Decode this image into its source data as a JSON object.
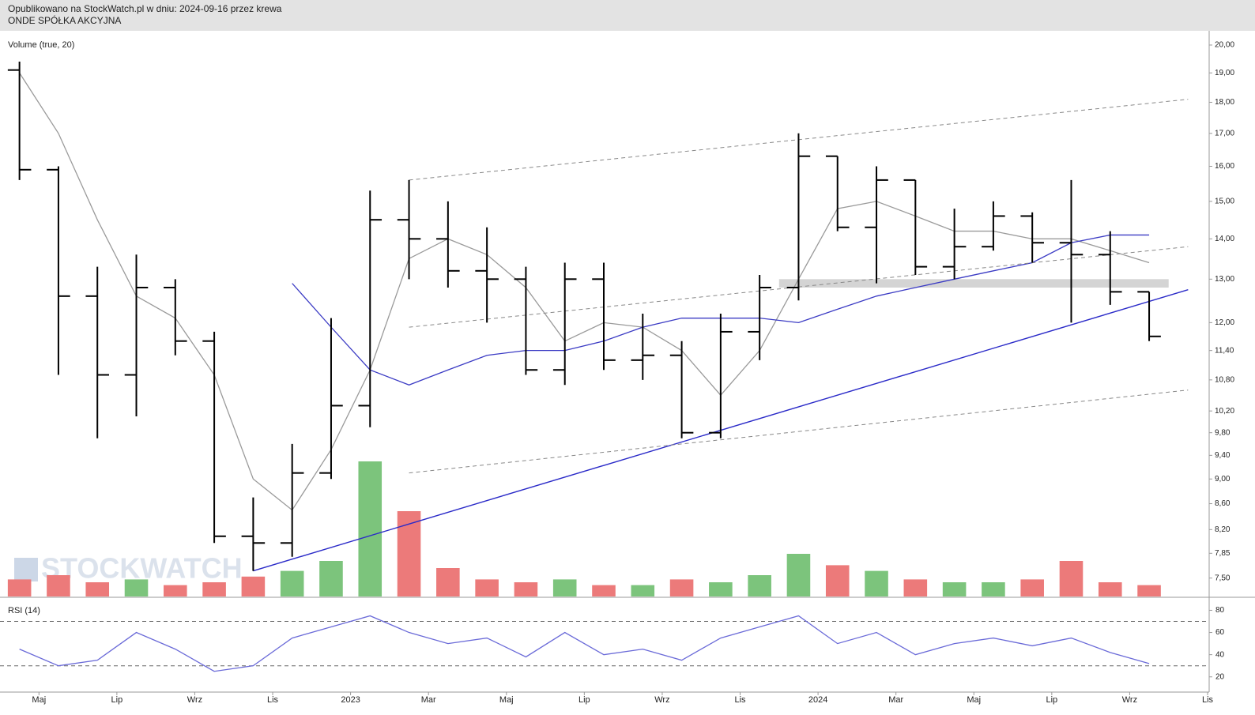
{
  "chart_data": [
    {
      "type": "ohlc",
      "title": "Opublikowano na StockWatch.pl w dniu: 2024-09-16 przez krewa",
      "subtitle": "ONDE SPÓŁKA AKCYJNA",
      "watermark": "STOCKWATCH",
      "log_scale": true,
      "color": "#000000",
      "x": [
        "2022-04",
        "2022-05",
        "2022-06",
        "2022-07",
        "2022-08",
        "2022-09",
        "2022-10",
        "2022-11",
        "2022-12",
        "2023-01",
        "2023-02",
        "2023-03",
        "2023-04",
        "2023-05",
        "2023-06",
        "2023-07",
        "2023-08",
        "2023-09",
        "2023-10",
        "2023-11",
        "2023-12",
        "2024-01",
        "2024-02",
        "2024-03",
        "2024-04",
        "2024-05",
        "2024-06",
        "2024-07",
        "2024-08",
        "2024-09"
      ],
      "open": [
        19.1,
        15.9,
        12.6,
        10.9,
        12.8,
        11.6,
        8.1,
        8.0,
        9.1,
        10.3,
        14.5,
        14.0,
        13.2,
        13.0,
        11.0,
        13.0,
        11.2,
        11.3,
        9.8,
        11.8,
        12.8,
        16.3,
        14.3,
        15.6,
        13.3,
        13.8,
        14.6,
        13.9,
        13.6,
        12.7
      ],
      "high": [
        19.4,
        16.0,
        13.3,
        13.6,
        13.0,
        11.8,
        8.7,
        9.6,
        12.1,
        15.3,
        15.6,
        15.0,
        14.3,
        13.3,
        13.4,
        13.4,
        12.2,
        11.6,
        12.2,
        13.1,
        17.0,
        16.3,
        16.0,
        15.6,
        14.8,
        15.0,
        14.7,
        15.6,
        14.2,
        12.7
      ],
      "low": [
        15.6,
        10.9,
        9.7,
        10.1,
        11.3,
        8.0,
        7.6,
        7.8,
        9.0,
        9.9,
        13.0,
        12.8,
        12.0,
        10.9,
        10.7,
        11.0,
        10.8,
        9.7,
        9.7,
        11.2,
        12.5,
        14.2,
        12.9,
        13.1,
        13.0,
        13.7,
        13.4,
        12.0,
        12.4,
        11.6
      ],
      "close": [
        15.9,
        12.6,
        10.9,
        12.8,
        11.6,
        8.1,
        8.0,
        9.1,
        10.3,
        14.5,
        14.0,
        13.2,
        13.0,
        11.0,
        13.0,
        11.2,
        11.3,
        9.8,
        11.8,
        12.8,
        16.3,
        14.3,
        15.6,
        13.3,
        13.8,
        14.6,
        13.9,
        13.6,
        12.7,
        11.7
      ],
      "series": [
        {
          "color": "#9a9a9a",
          "values": [
            19.0,
            17.0,
            14.5,
            12.6,
            12.1,
            10.9,
            9.0,
            8.5,
            9.5,
            11.0,
            13.5,
            14.0,
            13.6,
            12.8,
            11.6,
            12.0,
            11.9,
            11.4,
            10.5,
            11.4,
            13.0,
            14.8,
            15.0,
            14.6,
            14.2,
            14.2,
            14.0,
            14.0,
            13.7,
            13.4
          ]
        },
        {
          "color": "#3b3bc4",
          "values": [
            null,
            null,
            null,
            null,
            null,
            null,
            null,
            12.9,
            11.9,
            11.0,
            10.7,
            11.0,
            11.3,
            11.4,
            11.4,
            11.6,
            11.9,
            12.1,
            12.1,
            12.1,
            12.0,
            12.3,
            12.6,
            12.8,
            13.0,
            13.2,
            13.4,
            13.9,
            14.1,
            14.1
          ]
        }
      ],
      "volume": {
        "name": "Volume (true, 20)",
        "up_color": "#7cc47c",
        "down_color": "#ec7a7a",
        "values": [
          12,
          15,
          10,
          12,
          8,
          10,
          14,
          18,
          25,
          95,
          60,
          20,
          12,
          10,
          12,
          8,
          8,
          12,
          10,
          15,
          30,
          22,
          18,
          12,
          10,
          10,
          12,
          25,
          10,
          8
        ],
        "ylim": [
          0,
          100
        ]
      },
      "trendlines": [
        {
          "color": "#2a2ac8",
          "style": "solid",
          "x": [
            "2022-10",
            "2024-10"
          ],
          "values": [
            7.6,
            12.75
          ]
        },
        {
          "color": "#888888",
          "style": "dashed",
          "x": [
            "2023-02",
            "2024-10"
          ],
          "values": [
            15.6,
            18.1
          ]
        },
        {
          "color": "#888888",
          "style": "dashed",
          "x": [
            "2023-02",
            "2024-10"
          ],
          "values": [
            11.9,
            13.8
          ]
        },
        {
          "color": "#888888",
          "style": "dashed",
          "x": [
            "2023-02",
            "2024-10"
          ],
          "values": [
            9.1,
            10.6
          ]
        }
      ],
      "zone": {
        "color": "#d4d4d4",
        "x": [
          "2023-12",
          "2024-09"
        ],
        "values": [
          12.8,
          13.0
        ]
      },
      "xlim": [
        "2022-04",
        "2024-11"
      ],
      "ylim": [
        7.25,
        20.5
      ],
      "yticks": [
        {
          "value": 20,
          "label": "20,00"
        },
        {
          "value": 19,
          "label": "19,00"
        },
        {
          "value": 18,
          "label": "18,00"
        },
        {
          "value": 17,
          "label": "17,00"
        },
        {
          "value": 16,
          "label": "16,00"
        },
        {
          "value": 15,
          "label": "15,00"
        },
        {
          "value": 14,
          "label": "14,00"
        },
        {
          "value": 13,
          "label": "13,00"
        },
        {
          "value": 12,
          "label": "12,00"
        },
        {
          "value": 11.4,
          "label": "11,40"
        },
        {
          "value": 10.8,
          "label": "10,80"
        },
        {
          "value": 10.2,
          "label": "10,20"
        },
        {
          "value": 9.8,
          "label": "9,80"
        },
        {
          "value": 9.4,
          "label": "9,40"
        },
        {
          "value": 9,
          "label": "9,00"
        },
        {
          "value": 8.6,
          "label": "8,60"
        },
        {
          "value": 8.2,
          "label": "8,20"
        },
        {
          "value": 7.85,
          "label": "7,85"
        },
        {
          "value": 7.5,
          "label": "7,50"
        }
      ]
    },
    {
      "type": "line",
      "title": "RSI (14)",
      "x": [
        "2022-04",
        "2022-05",
        "2022-06",
        "2022-07",
        "2022-08",
        "2022-09",
        "2022-10",
        "2022-11",
        "2022-12",
        "2023-01",
        "2023-02",
        "2023-03",
        "2023-04",
        "2023-05",
        "2023-06",
        "2023-07",
        "2023-08",
        "2023-09",
        "2023-10",
        "2023-11",
        "2023-12",
        "2024-01",
        "2024-02",
        "2024-03",
        "2024-04",
        "2024-05",
        "2024-06",
        "2024-07",
        "2024-08",
        "2024-09"
      ],
      "series": [
        {
          "color": "#6a6ad8",
          "values": [
            45,
            30,
            35,
            60,
            45,
            25,
            30,
            55,
            65,
            75,
            60,
            50,
            55,
            38,
            60,
            40,
            45,
            35,
            55,
            65,
            75,
            50,
            60,
            40,
            50,
            55,
            48,
            55,
            42,
            32
          ]
        }
      ],
      "levels": [
        30,
        70
      ],
      "xlim": [
        "2022-04",
        "2024-11"
      ],
      "ylim": [
        7,
        91
      ],
      "yticks": [
        20,
        40,
        60,
        80
      ],
      "xticks": [
        {
          "value": "2022-05",
          "label": "Maj"
        },
        {
          "value": "2022-07",
          "label": "Lip"
        },
        {
          "value": "2022-09",
          "label": "Wrz"
        },
        {
          "value": "2022-11",
          "label": "Lis"
        },
        {
          "value": "2023-01",
          "label": "2023"
        },
        {
          "value": "2023-03",
          "label": "Mar"
        },
        {
          "value": "2023-05",
          "label": "Maj"
        },
        {
          "value": "2023-07",
          "label": "Lip"
        },
        {
          "value": "2023-09",
          "label": "Wrz"
        },
        {
          "value": "2023-11",
          "label": "Lis"
        },
        {
          "value": "2024-01",
          "label": "2024"
        },
        {
          "value": "2024-03",
          "label": "Mar"
        },
        {
          "value": "2024-05",
          "label": "Maj"
        },
        {
          "value": "2024-07",
          "label": "Lip"
        },
        {
          "value": "2024-09",
          "label": "Wrz"
        },
        {
          "value": "2024-11",
          "label": "Lis"
        }
      ]
    }
  ]
}
